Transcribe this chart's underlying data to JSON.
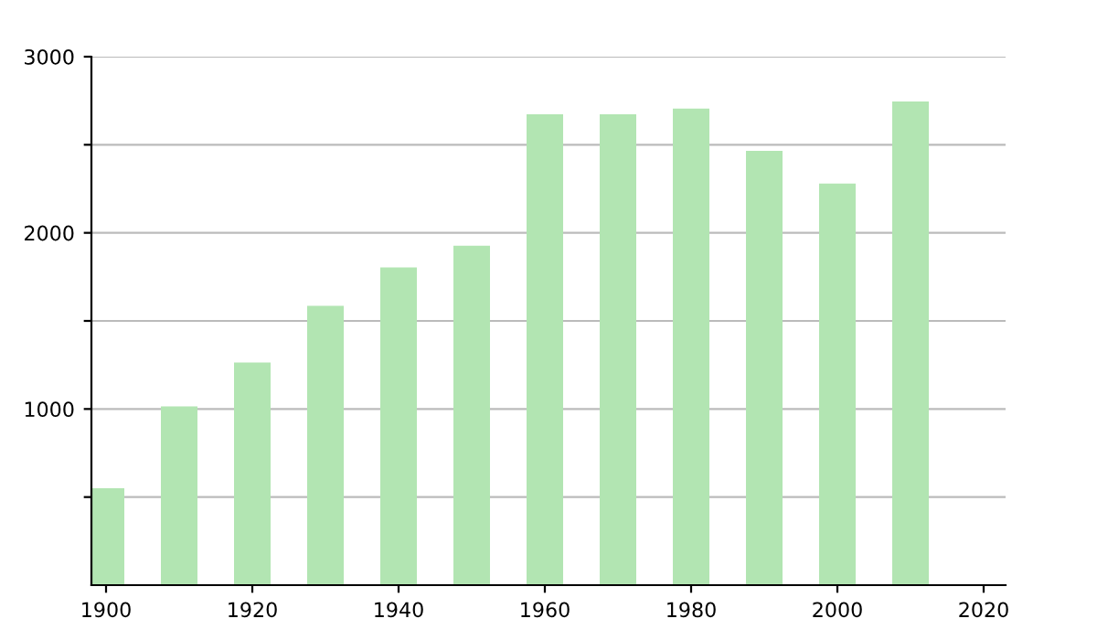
{
  "chart_data": {
    "type": "bar",
    "x": [
      1900,
      1910,
      1920,
      1930,
      1940,
      1950,
      1960,
      1970,
      1980,
      1990,
      2000,
      2010
    ],
    "values": [
      550,
      1015,
      1264,
      1585,
      1803,
      1927,
      2673,
      2673,
      2705,
      2466,
      2280,
      2746
    ],
    "color": "#b2e5b2",
    "xlim": [
      1898,
      2023
    ],
    "xticks": [
      1900,
      1920,
      1940,
      1960,
      1980,
      2000,
      2020
    ],
    "ylim": [
      0,
      3000
    ],
    "yticks": [
      {
        "value": 500,
        "label": null
      },
      1000,
      {
        "value": 1500,
        "label": null
      },
      2000,
      {
        "value": 2500,
        "label": null
      },
      3000
    ],
    "grid": "y",
    "legend": false
  }
}
